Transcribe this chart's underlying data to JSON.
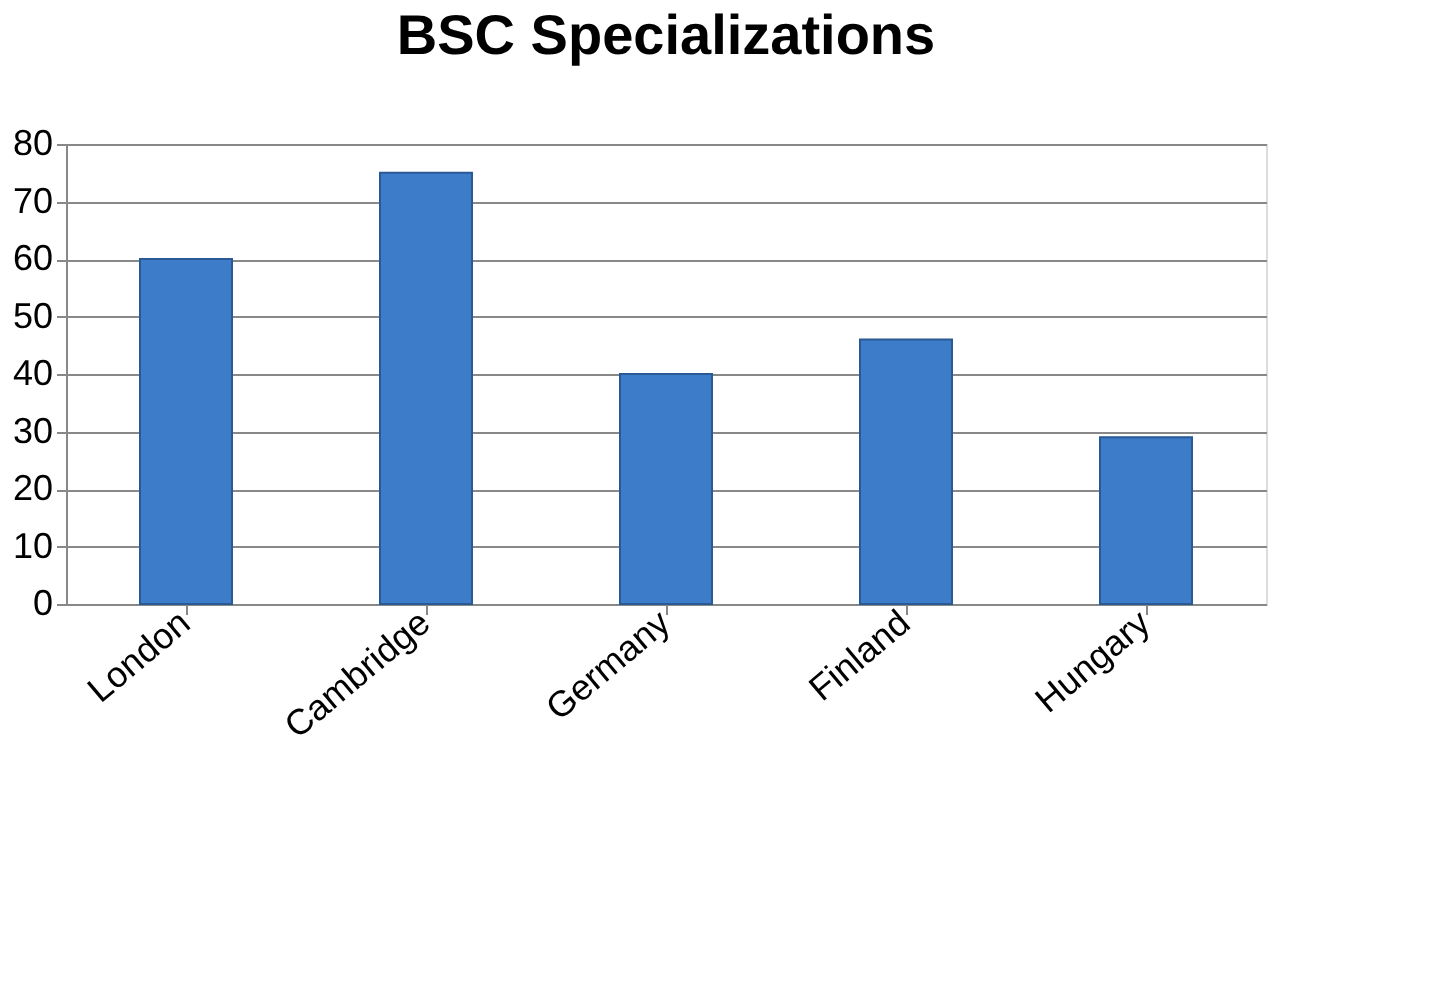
{
  "chart_data": {
    "type": "bar",
    "title": "BSC Specializations",
    "categories": [
      "London",
      "Cambridge",
      "Germany",
      "Finland",
      "Hungary"
    ],
    "values": [
      60,
      75,
      40,
      46,
      29
    ],
    "color": "#3d7cc9",
    "ylim": [
      0,
      80
    ],
    "yticks": [
      0,
      10,
      20,
      30,
      40,
      50,
      60,
      70,
      80
    ],
    "grid": "y"
  }
}
